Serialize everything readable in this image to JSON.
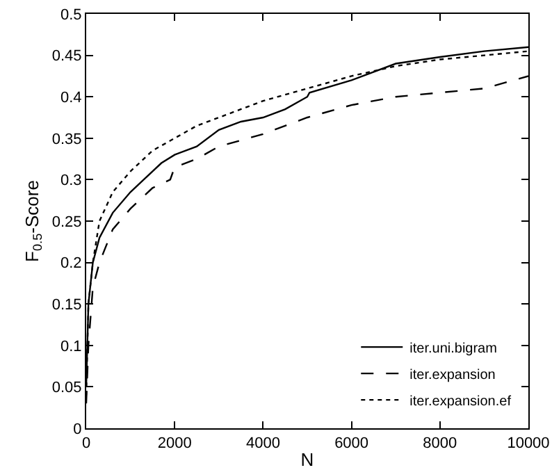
{
  "chart_data": {
    "type": "line",
    "xlabel": "N",
    "ylabel": "F$_{0.5}$-Score",
    "xlim": [
      0,
      10000
    ],
    "ylim": [
      0,
      0.5
    ],
    "xticks": [
      0,
      2000,
      4000,
      6000,
      8000,
      10000
    ],
    "yticks": [
      0,
      0.05,
      0.1,
      0.15,
      0.2,
      0.25,
      0.3,
      0.35,
      0.4,
      0.45,
      0.5
    ],
    "grid": false,
    "legend": "bottom right",
    "marker": "none",
    "series": [
      {
        "name": "iter.uni.bigram",
        "color": "#000000",
        "line_style": "solid",
        "x": [
          0,
          50,
          150,
          300,
          600,
          1000,
          1300,
          1700,
          2000,
          2500,
          3000,
          3500,
          4000,
          4500,
          5000,
          5050,
          6000,
          7000,
          8000,
          9000,
          10000
        ],
        "values": [
          0.05,
          0.15,
          0.2,
          0.23,
          0.26,
          0.285,
          0.3,
          0.32,
          0.33,
          0.34,
          0.36,
          0.37,
          0.375,
          0.385,
          0.4,
          0.405,
          0.42,
          0.44,
          0.448,
          0.455,
          0.46
        ]
      },
      {
        "name": "iter.expansion",
        "color": "#000000",
        "line_style": "dashed",
        "x": [
          0,
          50,
          150,
          300,
          600,
          1000,
          1500,
          1900,
          2000,
          2500,
          3000,
          4000,
          5000,
          6000,
          7000,
          8000,
          9000,
          10000
        ],
        "values": [
          0.03,
          0.1,
          0.17,
          0.2,
          0.24,
          0.265,
          0.29,
          0.3,
          0.315,
          0.325,
          0.34,
          0.355,
          0.375,
          0.39,
          0.4,
          0.405,
          0.41,
          0.425
        ]
      },
      {
        "name": "iter.expansion.ef",
        "color": "#000000",
        "line_style": "dotted",
        "x": [
          0,
          50,
          150,
          300,
          600,
          1000,
          1500,
          2000,
          2500,
          3000,
          4000,
          5000,
          6000,
          7000,
          8000,
          9000,
          10000
        ],
        "values": [
          0.04,
          0.15,
          0.2,
          0.25,
          0.285,
          0.31,
          0.335,
          0.35,
          0.365,
          0.375,
          0.395,
          0.41,
          0.425,
          0.437,
          0.445,
          0.45,
          0.455
        ]
      }
    ]
  }
}
